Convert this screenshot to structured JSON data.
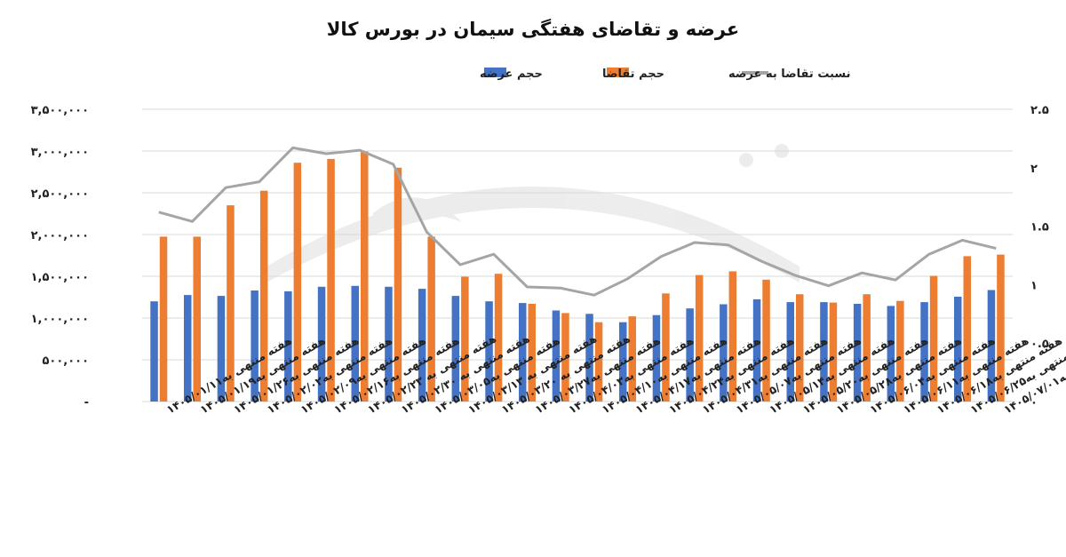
{
  "chart_data": {
    "type": "bar",
    "title": "عرضه و تقاضای هفتگی سیمان در بورس کالا",
    "legend_position": "top",
    "grid": true,
    "categories": [
      "هفته منتهی به۱۴۰۵/۰۱/۱۱",
      "هفته منتهی به۱۴۰۵/۰۱/۱۹",
      "هفته منتهی به۱۴۰۵/۰۱/۲۶",
      "هفته منتهی به۱۴۰۵/۰۲/۰۲",
      "هفته منتهی به۱۴۰۵/۰۲/۰۹",
      "هفته منتهی به۱۴۰۵/۰۲/۱۶",
      "هفته منتهی به ۱۴۰۵/۰۲/۲۳",
      "هفته منتهی به ۱۴۰۵/۰۲/۳۰",
      "هفته منتهی به۱۴۰۵/۰۳/۰۵",
      "هفته منتهی به ۱۴۰۵/۰۳/۱۳",
      "هفته منتهی به ۱۴۰۵/۰۳/۲۰",
      "هفته منتهی به۱۴۰۵/۰۳/۲۷",
      "هفته منتهی به۱۴۰۵/۰۴/۰۳",
      "هفته منتهی به۱۴۰۵/۰۴/۱۰",
      "هفته منتهی به۱۴۰۵/۰۴/۱۷",
      "هفته منتهی به۱۴۰۵/۰۴/۲۴",
      "هفته منتهی به۱۴۰۵/۰۴/۳۱",
      "هفته منتهی به۱۴۰۵/۰۵/۰۷",
      "هفته منتهی به۱۴۰۵/۰۵/۱۴",
      "هفته منتهی به۱۴۰۵/۰۵/۲۰",
      "هفته منتهی به۱۴۰۵/۰۵/۲۸",
      "هفته منتهی به۱۴۰۵/۰۶/۰۴",
      "هفته منتهی به۱۴۰۵/۰۶/۱۱",
      "هفته منتهی به۱۴۰۵/۰۶/۱۸",
      "هفته منتهی به۱۴۰۵/۰۶/۲۵",
      "هفته منتهی به۱۴۰۵/۰۷/۰۱"
    ],
    "series": [
      {
        "name": "حجم عرضه",
        "type": "bar",
        "axis": "left",
        "color": "#4472C4",
        "values": [
          1200000,
          1275000,
          1265000,
          1330000,
          1320000,
          1375000,
          1385000,
          1375000,
          1350000,
          1265000,
          1200000,
          1180000,
          1090000,
          1050000,
          950000,
          1035000,
          1115000,
          1165000,
          1225000,
          1190000,
          1190000,
          1170000,
          1145000,
          1190000,
          1255000,
          1335000
        ]
      },
      {
        "name": "حجم تقاضا",
        "type": "bar",
        "axis": "left",
        "color": "#ED7D31",
        "values": [
          1975000,
          1975000,
          2350000,
          2525000,
          2860000,
          2905000,
          2995000,
          2800000,
          1975000,
          1495000,
          1530000,
          1170000,
          1060000,
          950000,
          1020000,
          1295000,
          1515000,
          1560000,
          1460000,
          1285000,
          1185000,
          1285000,
          1205000,
          1505000,
          1740000,
          1760000
        ]
      },
      {
        "name": "نسبت تقاضا به عرضه",
        "type": "line",
        "axis": "right",
        "color": "#A5A5A5",
        "values": [
          1.62,
          1.54,
          1.83,
          1.88,
          2.17,
          2.12,
          2.15,
          2.03,
          1.45,
          1.17,
          1.26,
          0.98,
          0.97,
          0.91,
          1.05,
          1.24,
          1.36,
          1.34,
          1.2,
          1.08,
          0.99,
          1.1,
          1.04,
          1.26,
          1.38,
          1.31
        ]
      }
    ],
    "y_left": {
      "min": 0,
      "max": 3500000,
      "ticks": [
        0,
        500000,
        1000000,
        1500000,
        2000000,
        2500000,
        3000000,
        3500000
      ],
      "tick_labels": [
        "-",
        "۵۰۰,۰۰۰",
        "۱,۰۰۰,۰۰۰",
        "۱,۵۰۰,۰۰۰",
        "۲,۰۰۰,۰۰۰",
        "۲,۵۰۰,۰۰۰",
        "۳,۰۰۰,۰۰۰",
        "۳,۵۰۰,۰۰۰"
      ]
    },
    "y_right": {
      "min": 0,
      "max": 2.5,
      "ticks": [
        0,
        0.5,
        1,
        1.5,
        2,
        2.5
      ],
      "tick_labels": [
        "۰",
        "۰.۵",
        "۱",
        "۱.۵",
        "۲",
        "۲.۵"
      ]
    }
  }
}
